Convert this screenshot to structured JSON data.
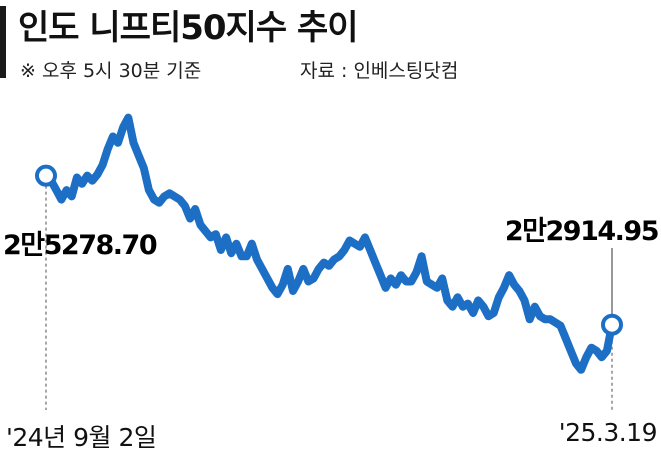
{
  "header": {
    "title": "인도 니프티50지수 추이",
    "note": "※ 오후 5시 30분 기준",
    "source": "자료 : 인베스팅닷컴"
  },
  "colors": {
    "line": "#1c6fc4",
    "text": "#111111",
    "guide": "#888888"
  },
  "chart_data": {
    "type": "line",
    "x_start_label": "'24년 9월 2일",
    "x_end_label": "'25.3.19",
    "ylim": [
      21800,
      26400
    ],
    "start_value_label": "2만5278.70",
    "end_value_label": "2만2914.95",
    "series": [
      {
        "values": [
          25279,
          25200,
          25050,
          24900,
          25050,
          24950,
          25250,
          25150,
          25280,
          25200,
          25300,
          25450,
          25700,
          25900,
          25800,
          26050,
          26200,
          25800,
          25600,
          25400,
          25050,
          24900,
          24850,
          24950,
          25000,
          24950,
          24900,
          24800,
          24600,
          24750,
          24500,
          24400,
          24300,
          24350,
          24100,
          24300,
          24050,
          24200,
          24000,
          24000,
          24200,
          23950,
          23800,
          23650,
          23500,
          23400,
          23550,
          23800,
          23450,
          23600,
          23800,
          23600,
          23650,
          23800,
          23900,
          23850,
          23950,
          24000,
          24100,
          24250,
          24200,
          24150,
          24300,
          24100,
          23900,
          23700,
          23500,
          23650,
          23550,
          23700,
          23600,
          23600,
          23750,
          24000,
          23600,
          23550,
          23500,
          23650,
          23300,
          23200,
          23350,
          23200,
          23250,
          23100,
          23300,
          23200,
          23050,
          23100,
          23350,
          23500,
          23700,
          23550,
          23450,
          23300,
          23000,
          23200,
          23050,
          23000,
          23000,
          22950,
          22900,
          22700,
          22500,
          22300,
          22200,
          22400,
          22550,
          22500,
          22400,
          22500,
          22915
        ]
      }
    ]
  }
}
